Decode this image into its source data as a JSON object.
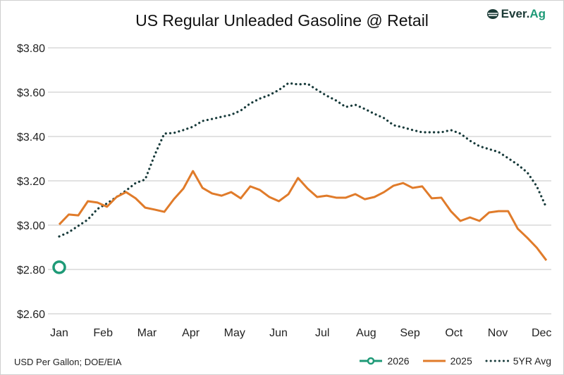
{
  "chart_data": {
    "type": "line",
    "title": "US Regular Unleaded Gasoline @ Retail",
    "xlabel": "",
    "ylabel": "",
    "note": "USD Per Gallon; DOE/EIA",
    "x_tick_labels": [
      "Jan",
      "Feb",
      "Mar",
      "Apr",
      "May",
      "Jun",
      "Jul",
      "Aug",
      "Sep",
      "Oct",
      "Nov",
      "Dec"
    ],
    "y_tick_labels": [
      "$2.60",
      "$2.80",
      "$3.00",
      "$3.20",
      "$3.40",
      "$3.60",
      "$3.80"
    ],
    "ylim": [
      2.6,
      3.8
    ],
    "x_unit": "week of year (52 weekly points)",
    "grid": "horizontal",
    "legend_position": "bottom-right",
    "series": [
      {
        "name": "2026",
        "color": "#1e9a77",
        "style": "line-with-marker",
        "values": [
          2.81
        ]
      },
      {
        "name": "2025",
        "color": "#e07b2a",
        "style": "solid",
        "values": [
          3.003,
          3.048,
          3.044,
          3.108,
          3.102,
          3.083,
          3.127,
          3.149,
          3.121,
          3.079,
          3.07,
          3.06,
          3.117,
          3.165,
          3.244,
          3.168,
          3.143,
          3.133,
          3.149,
          3.121,
          3.175,
          3.159,
          3.127,
          3.108,
          3.14,
          3.213,
          3.165,
          3.127,
          3.133,
          3.124,
          3.124,
          3.14,
          3.117,
          3.127,
          3.149,
          3.178,
          3.19,
          3.168,
          3.175,
          3.121,
          3.124,
          3.063,
          3.019,
          3.035,
          3.019,
          3.057,
          3.063,
          3.063,
          2.984,
          2.943,
          2.898,
          2.841
        ]
      },
      {
        "name": "5YR Avg",
        "color": "#173a3a",
        "style": "dotted",
        "values": [
          2.949,
          2.968,
          2.997,
          3.025,
          3.073,
          3.098,
          3.127,
          3.156,
          3.19,
          3.206,
          3.317,
          3.413,
          3.416,
          3.429,
          3.444,
          3.47,
          3.479,
          3.489,
          3.498,
          3.517,
          3.549,
          3.571,
          3.587,
          3.61,
          3.641,
          3.635,
          3.638,
          3.61,
          3.584,
          3.562,
          3.533,
          3.543,
          3.524,
          3.502,
          3.483,
          3.451,
          3.441,
          3.429,
          3.419,
          3.419,
          3.419,
          3.429,
          3.413,
          3.381,
          3.356,
          3.343,
          3.33,
          3.302,
          3.273,
          3.238,
          3.175,
          3.079
        ]
      }
    ]
  },
  "logo": {
    "text_a": "Ever.",
    "text_b": "Ag"
  }
}
